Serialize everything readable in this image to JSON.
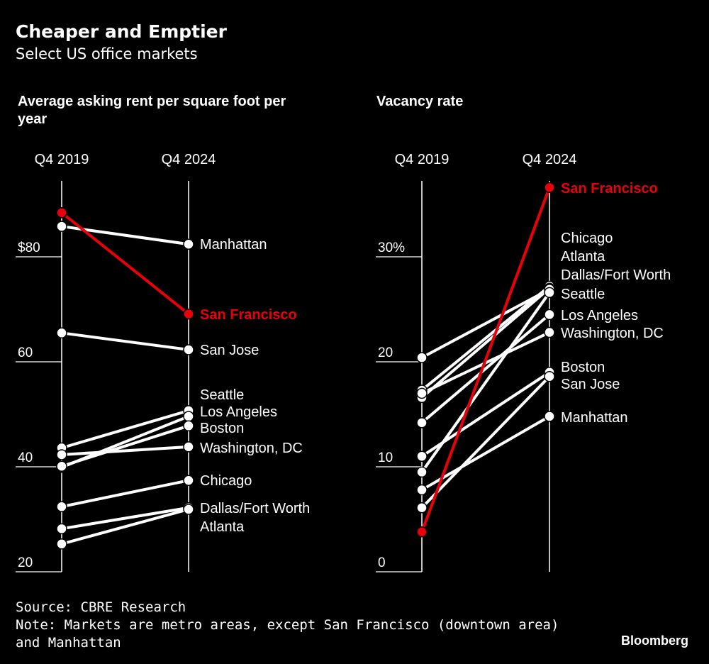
{
  "header": {
    "title": "Cheaper and Emptier",
    "subtitle": "Select US office markets"
  },
  "footer": {
    "source": "Source: CBRE Research",
    "note_line1": "Note: Markets are metro areas, except San Francisco (downtown area)",
    "note_line2": "and Manhattan",
    "logo": "Bloomberg"
  },
  "colors": {
    "highlight": "#e8000b",
    "default": "#ffffff",
    "background": "#000000"
  },
  "chart_data": [
    {
      "type": "slope",
      "title": "Average asking rent per square foot per year",
      "x": [
        "Q4 2019",
        "Q4 2024"
      ],
      "ylim": [
        20,
        95
      ],
      "yticks": [
        {
          "value": 80,
          "label": "$80"
        },
        {
          "value": 60,
          "label": "60"
        },
        {
          "value": 40,
          "label": "40"
        },
        {
          "value": 20,
          "label": "20"
        }
      ],
      "series": [
        {
          "name": "Manhattan",
          "values": [
            85.8,
            82.4
          ],
          "highlight": false
        },
        {
          "name": "San Jose",
          "values": [
            65.5,
            62.3
          ],
          "highlight": false
        },
        {
          "name": "Seattle",
          "values": [
            43.6,
            50.7
          ],
          "highlight": false
        },
        {
          "name": "Los Angeles",
          "values": [
            39.9,
            49.6
          ],
          "highlight": false
        },
        {
          "name": "Boston",
          "values": [
            40.1,
            47.8
          ],
          "highlight": false
        },
        {
          "name": "Washington, DC",
          "values": [
            42.3,
            43.8
          ],
          "highlight": false
        },
        {
          "name": "Chicago",
          "values": [
            32.4,
            37.4
          ],
          "highlight": false
        },
        {
          "name": "Dallas/Fort Worth",
          "values": [
            28.2,
            32.2
          ],
          "highlight": false
        },
        {
          "name": "Atlanta",
          "values": [
            25.3,
            31.9
          ],
          "highlight": false
        },
        {
          "name": "San Francisco",
          "values": [
            88.4,
            69.1
          ],
          "highlight": true
        }
      ]
    },
    {
      "type": "slope",
      "title": "Vacancy rate",
      "x": [
        "Q4 2019",
        "Q4 2024"
      ],
      "ylim": [
        0,
        37
      ],
      "yticks": [
        {
          "value": 30,
          "label": "30%"
        },
        {
          "value": 20,
          "label": "20"
        },
        {
          "value": 10,
          "label": "10"
        },
        {
          "value": 0,
          "label": "0"
        }
      ],
      "series": [
        {
          "name": "Chicago",
          "values": [
            17.3,
            27.2
          ],
          "highlight": false
        },
        {
          "name": "Atlanta",
          "values": [
            16.6,
            27.0
          ],
          "highlight": false
        },
        {
          "name": "Dallas/Fort Worth",
          "values": [
            20.4,
            26.9
          ],
          "highlight": false
        },
        {
          "name": "Seattle",
          "values": [
            9.5,
            26.6
          ],
          "highlight": false
        },
        {
          "name": "Los Angeles",
          "values": [
            14.2,
            24.5
          ],
          "highlight": false
        },
        {
          "name": "Washington, DC",
          "values": [
            17.0,
            22.8
          ],
          "highlight": false
        },
        {
          "name": "Boston",
          "values": [
            11.0,
            19.0
          ],
          "highlight": false
        },
        {
          "name": "San Jose",
          "values": [
            6.1,
            18.6
          ],
          "highlight": false
        },
        {
          "name": "Manhattan",
          "values": [
            7.8,
            14.8
          ],
          "highlight": false
        },
        {
          "name": "San Francisco",
          "values": [
            3.8,
            36.6
          ],
          "highlight": true
        }
      ]
    }
  ]
}
